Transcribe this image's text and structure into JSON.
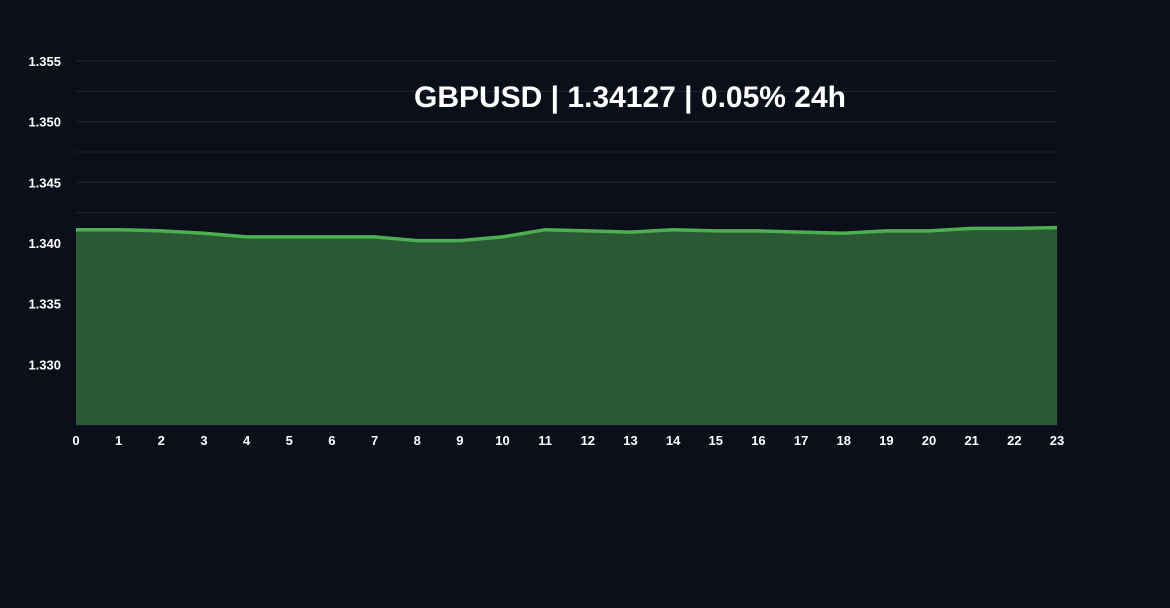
{
  "chart_data": {
    "type": "area",
    "title": "GBPUSD | 1.34127 | 0.05% 24h",
    "xlabel": "",
    "ylabel": "",
    "x": [
      0,
      1,
      2,
      3,
      4,
      5,
      6,
      7,
      8,
      9,
      10,
      11,
      12,
      13,
      14,
      15,
      16,
      17,
      18,
      19,
      20,
      21,
      22,
      23
    ],
    "series": [
      {
        "values": [
          1.3411,
          1.3411,
          1.341,
          1.3408,
          1.3405,
          1.3405,
          1.3405,
          1.3405,
          1.3402,
          1.3402,
          1.3405,
          1.3411,
          1.341,
          1.3409,
          1.3411,
          1.341,
          1.341,
          1.3409,
          1.3408,
          1.341,
          1.341,
          1.3412,
          1.3412,
          1.34127
        ]
      }
    ],
    "xlim": [
      0,
      23
    ],
    "ylim": [
      1.325,
      1.355
    ],
    "yticks": [
      "1.330",
      "1.335",
      "1.340",
      "1.345",
      "1.350",
      "1.355"
    ],
    "xticks": [
      "0",
      "1",
      "2",
      "3",
      "4",
      "5",
      "6",
      "7",
      "8",
      "9",
      "10",
      "11",
      "12",
      "13",
      "14",
      "15",
      "16",
      "17",
      "18",
      "19",
      "20",
      "21",
      "22",
      "23"
    ],
    "grid": true,
    "legend": "none",
    "colors": {
      "background": "#0b0f19",
      "line": "#4caf50",
      "fill": "#2a5934",
      "grid": "#1e2535",
      "text": "#ffffff"
    }
  }
}
